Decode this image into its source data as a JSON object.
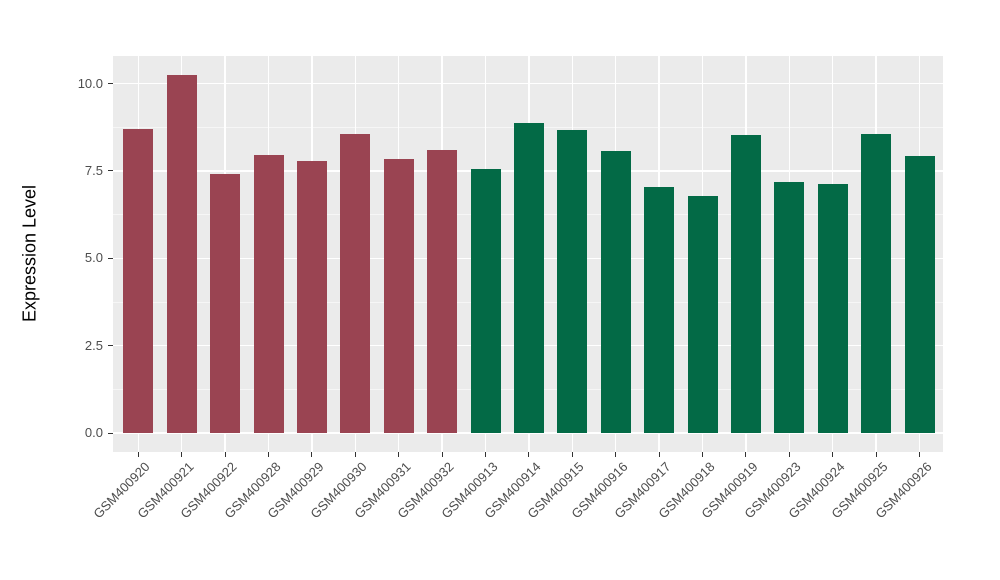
{
  "chart_data": {
    "type": "bar",
    "title": "",
    "ylabel": "Expression Level",
    "xlabel": "",
    "categories": [
      "GSM400920",
      "GSM400921",
      "GSM400922",
      "GSM400928",
      "GSM400929",
      "GSM400930",
      "GSM400931",
      "GSM400932",
      "GSM400913",
      "GSM400914",
      "GSM400915",
      "GSM400916",
      "GSM400917",
      "GSM400918",
      "GSM400919",
      "GSM400923",
      "GSM400924",
      "GSM400925",
      "GSM400926"
    ],
    "values": [
      8.7,
      10.25,
      7.4,
      7.95,
      7.78,
      8.55,
      7.85,
      8.1,
      7.55,
      8.88,
      8.67,
      8.07,
      7.03,
      6.77,
      8.52,
      7.17,
      7.13,
      8.55,
      7.92
    ],
    "bar_groups": [
      0,
      0,
      0,
      0,
      0,
      0,
      0,
      0,
      1,
      1,
      1,
      1,
      1,
      1,
      1,
      1,
      1,
      1,
      1
    ],
    "group_colors": [
      "#9A4452",
      "#036A46"
    ],
    "yticks": [
      0.0,
      2.5,
      5.0,
      7.5,
      10.0
    ],
    "ytick_labels": [
      "0.0",
      "2.5",
      "5.0",
      "7.5",
      "10.0"
    ],
    "yticks_minor": [
      1.25,
      3.75,
      6.25,
      8.75
    ],
    "ylim": [
      0,
      10.79
    ],
    "grid": true,
    "legend": false,
    "x_label_rotation": 45
  },
  "styles": {
    "background": "#FFFFFF",
    "panel_bg": "#EBEBEB",
    "grid_color": "#FFFFFF",
    "axis_text_color": "#4D4D4D",
    "axis_title_color": "#000000",
    "tick_color": "#333333"
  }
}
